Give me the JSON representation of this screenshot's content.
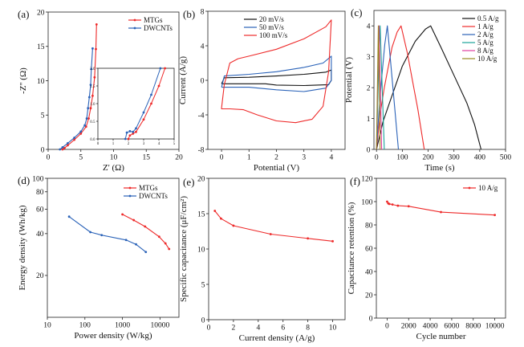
{
  "chart_data": [
    {
      "panel": "(a)",
      "type": "line",
      "xlabel": "Z' (Ω)",
      "ylabel": "-Z'' (Ω)",
      "xlim": [
        0,
        20
      ],
      "ylim": [
        0,
        20
      ],
      "xticks": [
        0,
        5,
        10,
        15,
        20
      ],
      "yticks": [
        0,
        5,
        10,
        15,
        20
      ],
      "legend": "top-right",
      "markers": true,
      "series": [
        {
          "name": "MTGs",
          "color": "#ee2a2a",
          "x": [
            2.2,
            2.5,
            3,
            4,
            5,
            5.8,
            6.2,
            6.5,
            6.8,
            7.1,
            7.3,
            7.4
          ],
          "y": [
            0,
            0.2,
            0.6,
            1.4,
            2.3,
            3.3,
            4.5,
            6,
            7.8,
            10.5,
            14.6,
            18.2
          ]
        },
        {
          "name": "DWCNTs",
          "color": "#2a62b8",
          "x": [
            1.8,
            2.2,
            3,
            4,
            5,
            5.6,
            5.9,
            6.1,
            6.3,
            6.5,
            6.6,
            6.8
          ],
          "y": [
            0,
            0.3,
            0.9,
            1.7,
            2.6,
            3.5,
            4.5,
            6,
            7.6,
            9.4,
            11.7,
            14.7
          ]
        }
      ],
      "inset": {
        "xlim": [
          0,
          5
        ],
        "ylim": [
          0,
          2.0
        ],
        "xticks": [
          0,
          1,
          2,
          3,
          4,
          5
        ],
        "yticks": [
          "0.0",
          "0.5",
          "1.0",
          "1.5",
          "2.0"
        ],
        "series": [
          {
            "color": "#ee2a2a",
            "x": [
              2.0,
              2.1,
              2.3,
              2.5,
              3,
              3.5,
              4,
              4.4
            ],
            "y": [
              0,
              0.1,
              0.15,
              0.2,
              0.55,
              1.0,
              1.5,
              2.0
            ]
          },
          {
            "color": "#2a62b8",
            "x": [
              1.8,
              1.9,
              2.1,
              2.3,
              2.5,
              3,
              3.5,
              4.1
            ],
            "y": [
              0,
              0.18,
              0.22,
              0.2,
              0.3,
              0.75,
              1.25,
              2.0
            ]
          }
        ]
      }
    },
    {
      "panel": "(b)",
      "type": "line",
      "xlabel": "Potential (V)",
      "ylabel": "Current (A/g)",
      "xlim": [
        -0.5,
        4.5
      ],
      "ylim": [
        -8,
        8
      ],
      "xticks": [
        0,
        1,
        2,
        3,
        4
      ],
      "yticks": [
        -8,
        -4,
        0,
        4,
        8
      ],
      "legend": "top-left",
      "markers": false,
      "series": [
        {
          "name": "20 mV/s",
          "color": "#111111",
          "x": [
            0,
            0.1,
            1,
            2,
            3,
            3.8,
            4,
            4,
            3.9,
            3,
            2,
            1.6,
            1,
            0,
            0
          ],
          "y": [
            -0.4,
            0.3,
            0.35,
            0.5,
            0.7,
            0.95,
            1.2,
            0,
            -0.5,
            -0.6,
            -0.55,
            -0.4,
            -0.4,
            -0.4,
            -0.4
          ]
        },
        {
          "name": "50 mV/s",
          "color": "#2a62b8",
          "x": [
            0,
            0.1,
            1,
            2,
            3,
            3.7,
            4,
            4,
            3.8,
            3,
            2,
            1,
            0,
            0
          ],
          "y": [
            -0.8,
            0.5,
            0.7,
            1.0,
            1.5,
            2.0,
            2.8,
            0,
            -0.9,
            -1.3,
            -1.1,
            -0.8,
            -0.8,
            -0.8
          ]
        },
        {
          "name": "100 mV/s",
          "color": "#ee2a2a",
          "x": [
            0,
            0.1,
            0.3,
            0.6,
            1,
            2,
            3,
            3.8,
            4,
            3.9,
            3.7,
            3.3,
            2.7,
            2,
            1.3,
            0.8,
            0.3,
            0,
            0
          ],
          "y": [
            -3.2,
            -0.5,
            2,
            2.5,
            2.8,
            3.6,
            4.8,
            6.2,
            7,
            1,
            -3,
            -4.5,
            -4.9,
            -4.7,
            -4.0,
            -3.4,
            -3.3,
            -3.3,
            -3.2
          ]
        }
      ]
    },
    {
      "panel": "(c)",
      "type": "line",
      "xlabel": "Time (s)",
      "ylabel": "Potential (V)",
      "xlim": [
        -10,
        500
      ],
      "ylim": [
        0,
        4.5
      ],
      "xticks": [
        0,
        100,
        200,
        300,
        400,
        500
      ],
      "yticks": [
        0,
        1,
        2,
        3,
        4
      ],
      "legend": "top-right",
      "markers": false,
      "series": [
        {
          "name": "0.5 A/g",
          "color": "#111111",
          "x": [
            0,
            25,
            50,
            100,
            150,
            190,
            210,
            250,
            300,
            350,
            380,
            405
          ],
          "y": [
            0,
            0.9,
            1.5,
            2.7,
            3.5,
            3.9,
            4.0,
            3.3,
            2.4,
            1.5,
            0.8,
            0
          ]
        },
        {
          "name": "1 A/g",
          "color": "#ee2a2a",
          "x": [
            0,
            15,
            30,
            60,
            80,
            95,
            120,
            140,
            160,
            185
          ],
          "y": [
            0,
            1.2,
            2,
            3.3,
            3.8,
            4.0,
            3.1,
            2.2,
            1.3,
            0
          ]
        },
        {
          "name": "2 A/g",
          "color": "#2a62b8",
          "x": [
            0,
            10,
            20,
            32,
            42,
            55,
            70,
            85
          ],
          "y": [
            0,
            1.3,
            2.3,
            3.4,
            4.0,
            2.8,
            1.4,
            0
          ]
        },
        {
          "name": "5 A/g",
          "color": "#1aa39a",
          "x": [
            0,
            7,
            14,
            22,
            30
          ],
          "y": [
            0,
            2.3,
            4.0,
            2.0,
            0
          ]
        },
        {
          "name": "8 A/g",
          "color": "#e040a0",
          "x": [
            0,
            5,
            10,
            15,
            20
          ],
          "y": [
            0,
            2.3,
            4.0,
            2.0,
            0
          ]
        },
        {
          "name": "10 A/g",
          "color": "#9a8a20",
          "x": [
            0,
            4,
            7,
            11,
            14
          ],
          "y": [
            0,
            2.3,
            4.0,
            2.0,
            0
          ]
        }
      ]
    },
    {
      "panel": "(d)",
      "type": "line",
      "xlabel": "Power density (W/kg)",
      "ylabel": "Energy density (Wh/kg)",
      "xscale": "log",
      "yscale": "log",
      "xlim": [
        10,
        32000
      ],
      "ylim": [
        10,
        100
      ],
      "xticks": [
        10,
        100,
        1000,
        10000
      ],
      "yticks": [
        20,
        40,
        60,
        80,
        100
      ],
      "legend": "top-right",
      "markers": true,
      "series": [
        {
          "name": "MTGs",
          "color": "#ee2a2a",
          "x": [
            1000,
            2000,
            4000,
            9500,
            14000,
            17500
          ],
          "y": [
            55,
            50,
            45,
            38,
            34,
            31
          ]
        },
        {
          "name": "DWCNTs",
          "color": "#2a62b8",
          "x": [
            38,
            140,
            280,
            1250,
            2300,
            4200
          ],
          "y": [
            53,
            41,
            39,
            36,
            33.5,
            29.5
          ]
        }
      ]
    },
    {
      "panel": "(e)",
      "type": "line",
      "xlabel": "Current density (A/g)",
      "ylabel": "Specific capacitance (μF/cm²)",
      "xlim": [
        0,
        11
      ],
      "ylim": [
        0,
        20
      ],
      "xticks": [
        0,
        2,
        4,
        6,
        8,
        10
      ],
      "yticks": [
        0,
        5,
        10,
        15,
        20
      ],
      "markers": true,
      "series": [
        {
          "color": "#ee2a2a",
          "x": [
            0.5,
            1,
            2,
            5,
            8,
            10
          ],
          "y": [
            15.4,
            14.3,
            13.3,
            12.1,
            11.5,
            11.1
          ]
        }
      ]
    },
    {
      "panel": "(f)",
      "type": "line",
      "xlabel": "Cycle number",
      "ylabel": "Capacitance retention (%)",
      "xlim": [
        -1000,
        11000
      ],
      "ylim": [
        0,
        120
      ],
      "xticks": [
        0,
        2000,
        4000,
        6000,
        8000,
        10000
      ],
      "yticks": [
        0,
        20,
        40,
        60,
        80,
        100,
        120
      ],
      "legend": "top-right",
      "markers": true,
      "series": [
        {
          "name": "10 A/g",
          "color": "#ee2a2a",
          "x": [
            0,
            100,
            200,
            500,
            1000,
            2000,
            5000,
            10000
          ],
          "y": [
            100,
            98.5,
            98,
            97.5,
            96.5,
            96,
            91,
            88.5
          ]
        }
      ]
    }
  ]
}
